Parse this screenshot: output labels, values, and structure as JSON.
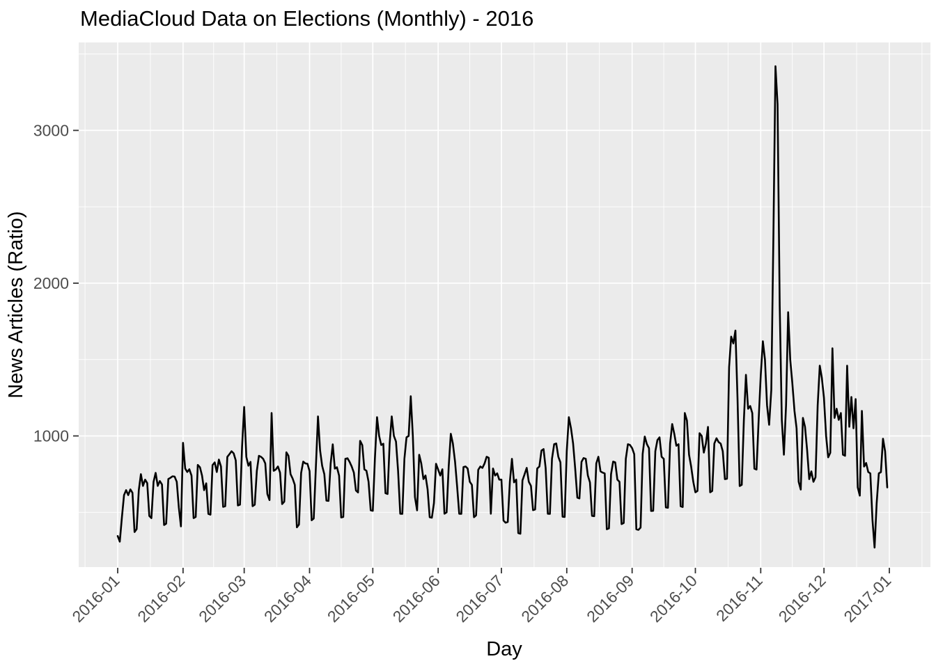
{
  "page": {
    "background": "#FFFFFF"
  },
  "chart_data": {
    "type": "line",
    "title": "MediaCloud Data on Elections (Monthly) - 2016",
    "xlabel": "Day",
    "ylabel": "News Articles (Ratio)",
    "legend": "none",
    "grid": "white major and minor gridlines on gray panel",
    "panel_color": "#EBEBEB",
    "gridline_color": "#FFFFFF",
    "line_color": "#000000",
    "axis_text_color": "#4D4D4D",
    "tick_mark_color": "#333333",
    "x_tick_labels": [
      "2016-01",
      "2016-02",
      "2016-03",
      "2016-04",
      "2016-05",
      "2016-06",
      "2016-07",
      "2016-08",
      "2016-09",
      "2016-10",
      "2016-11",
      "2016-12",
      "2017-01"
    ],
    "y_tick_labels": [
      "1000",
      "2000",
      "3000"
    ],
    "y_ticks": [
      1000,
      2000,
      3000
    ],
    "y_minor_gridlines": [
      500,
      1500,
      2500,
      3500
    ],
    "y_range_visible": [
      140,
      3575
    ],
    "x_range_days_visible": [
      -18.6,
      385.6
    ],
    "series": [
      {
        "name": "News Articles (Ratio)",
        "start_date": "2016-01-01",
        "frequency": "daily",
        "values": [
          345,
          308,
          470,
          613,
          645,
          613,
          650,
          628,
          371,
          390,
          645,
          750,
          673,
          714,
          691,
          476,
          462,
          700,
          758,
          673,
          705,
          682,
          417,
          426,
          718,
          726,
          736,
          734,
          700,
          531,
          408,
          955,
          787,
          764,
          782,
          740,
          462,
          470,
          810,
          795,
          741,
          645,
          690,
          490,
          485,
          809,
          827,
          764,
          845,
          800,
          536,
          540,
          863,
          880,
          900,
          886,
          840,
          545,
          550,
          930,
          1190,
          863,
          805,
          830,
          540,
          550,
          772,
          870,
          863,
          850,
          820,
          620,
          580,
          1150,
          772,
          780,
          800,
          760,
          554,
          570,
          893,
          870,
          750,
          720,
          680,
          402,
          420,
          758,
          832,
          820,
          818,
          770,
          448,
          460,
          800,
          1128,
          906,
          804,
          750,
          577,
          575,
          820,
          945,
          786,
          795,
          740,
          466,
          470,
          850,
          854,
          830,
          800,
          760,
          643,
          630,
          968,
          940,
          781,
          772,
          700,
          513,
          510,
          850,
          1123,
          1000,
          941,
          949,
          625,
          620,
          950,
          1128,
          1000,
          963,
          772,
          491,
          490,
          850,
          991,
          1000,
          1260,
          1000,
          600,
          513,
          877,
          820,
          718,
          741,
          650,
          468,
          465,
          560,
          818,
          780,
          741,
          782,
          491,
          500,
          800,
          1014,
          950,
          832,
          668,
          491,
          490,
          796,
          800,
          787,
          700,
          680,
          468,
          480,
          778,
          800,
          791,
          820,
          864,
          857,
          491,
          787,
          741,
          755,
          714,
          714,
          446,
          432,
          437,
          700,
          850,
          696,
          714,
          364,
          360,
          709,
          750,
          791,
          700,
          673,
          514,
          519,
          787,
          800,
          905,
          914,
          790,
          491,
          490,
          850,
          946,
          951,
          864,
          827,
          471,
          470,
          900,
          1123,
          1050,
          951,
          787,
          596,
          591,
          830,
          855,
          850,
          741,
          696,
          477,
          475,
          820,
          864,
          768,
          760,
          755,
          389,
          395,
          750,
          832,
          827,
          714,
          700,
          423,
          430,
          850,
          946,
          941,
          920,
          880,
          389,
          385,
          400,
          882,
          996,
          946,
          920,
          509,
          510,
          900,
          973,
          991,
          864,
          850,
          532,
          530,
          950,
          1078,
          1014,
          936,
          946,
          540,
          535,
          1150,
          1100,
          877,
          800,
          700,
          631,
          640,
          1018,
          1000,
          891,
          950,
          1059,
          631,
          640,
          950,
          985,
          960,
          950,
          900,
          717,
          720,
          1450,
          1650,
          1606,
          1690,
          1246,
          672,
          680,
          1100,
          1400,
          1178,
          1196,
          1150,
          786,
          780,
          1100,
          1392,
          1620,
          1500,
          1200,
          1073,
          1300,
          2300,
          3420,
          3170,
          1850,
          1105,
          877,
          1200,
          1810,
          1500,
          1346,
          1164,
          1050,
          700,
          649,
          1118,
          1060,
          910,
          717,
          768,
          700,
          730,
          1200,
          1460,
          1380,
          1250,
          1000,
          860,
          890,
          1574,
          1118,
          1178,
          1105,
          1150,
          877,
          870,
          1460,
          1060,
          1255,
          1050,
          1241,
          663,
          609,
          1164,
          800,
          823,
          764,
          755,
          450,
          269,
          560,
          755,
          763,
          982,
          900,
          663
        ]
      }
    ]
  }
}
